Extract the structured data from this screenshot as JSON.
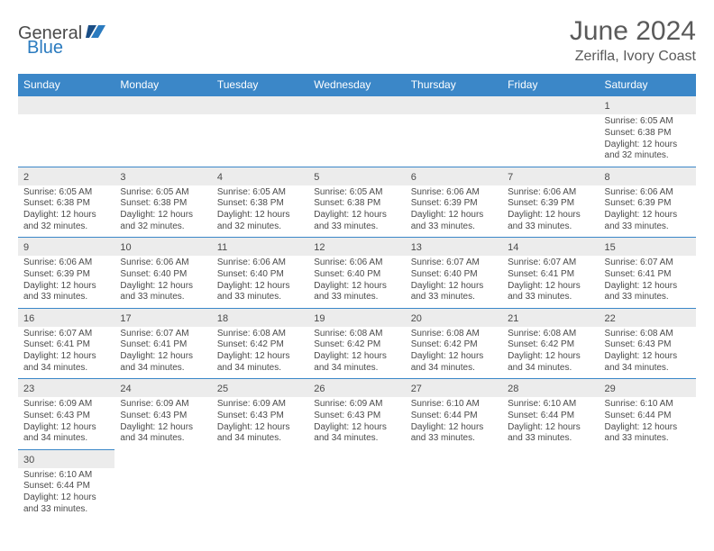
{
  "brand": {
    "general": "General",
    "blue": "Blue"
  },
  "title": "June 2024",
  "location": "Zerifla, Ivory Coast",
  "colors": {
    "header_bg": "#3b87c8",
    "header_text": "#ffffff",
    "daynum_bg": "#ececec",
    "border": "#3b87c8",
    "text": "#4a4a4a",
    "logo_blue": "#2b7bbf"
  },
  "day_headers": [
    "Sunday",
    "Monday",
    "Tuesday",
    "Wednesday",
    "Thursday",
    "Friday",
    "Saturday"
  ],
  "weeks": [
    [
      null,
      null,
      null,
      null,
      null,
      null,
      {
        "n": "1",
        "sr": "Sunrise: 6:05 AM",
        "ss": "Sunset: 6:38 PM",
        "dl": "Daylight: 12 hours and 32 minutes."
      }
    ],
    [
      {
        "n": "2",
        "sr": "Sunrise: 6:05 AM",
        "ss": "Sunset: 6:38 PM",
        "dl": "Daylight: 12 hours and 32 minutes."
      },
      {
        "n": "3",
        "sr": "Sunrise: 6:05 AM",
        "ss": "Sunset: 6:38 PM",
        "dl": "Daylight: 12 hours and 32 minutes."
      },
      {
        "n": "4",
        "sr": "Sunrise: 6:05 AM",
        "ss": "Sunset: 6:38 PM",
        "dl": "Daylight: 12 hours and 32 minutes."
      },
      {
        "n": "5",
        "sr": "Sunrise: 6:05 AM",
        "ss": "Sunset: 6:38 PM",
        "dl": "Daylight: 12 hours and 33 minutes."
      },
      {
        "n": "6",
        "sr": "Sunrise: 6:06 AM",
        "ss": "Sunset: 6:39 PM",
        "dl": "Daylight: 12 hours and 33 minutes."
      },
      {
        "n": "7",
        "sr": "Sunrise: 6:06 AM",
        "ss": "Sunset: 6:39 PM",
        "dl": "Daylight: 12 hours and 33 minutes."
      },
      {
        "n": "8",
        "sr": "Sunrise: 6:06 AM",
        "ss": "Sunset: 6:39 PM",
        "dl": "Daylight: 12 hours and 33 minutes."
      }
    ],
    [
      {
        "n": "9",
        "sr": "Sunrise: 6:06 AM",
        "ss": "Sunset: 6:39 PM",
        "dl": "Daylight: 12 hours and 33 minutes."
      },
      {
        "n": "10",
        "sr": "Sunrise: 6:06 AM",
        "ss": "Sunset: 6:40 PM",
        "dl": "Daylight: 12 hours and 33 minutes."
      },
      {
        "n": "11",
        "sr": "Sunrise: 6:06 AM",
        "ss": "Sunset: 6:40 PM",
        "dl": "Daylight: 12 hours and 33 minutes."
      },
      {
        "n": "12",
        "sr": "Sunrise: 6:06 AM",
        "ss": "Sunset: 6:40 PM",
        "dl": "Daylight: 12 hours and 33 minutes."
      },
      {
        "n": "13",
        "sr": "Sunrise: 6:07 AM",
        "ss": "Sunset: 6:40 PM",
        "dl": "Daylight: 12 hours and 33 minutes."
      },
      {
        "n": "14",
        "sr": "Sunrise: 6:07 AM",
        "ss": "Sunset: 6:41 PM",
        "dl": "Daylight: 12 hours and 33 minutes."
      },
      {
        "n": "15",
        "sr": "Sunrise: 6:07 AM",
        "ss": "Sunset: 6:41 PM",
        "dl": "Daylight: 12 hours and 33 minutes."
      }
    ],
    [
      {
        "n": "16",
        "sr": "Sunrise: 6:07 AM",
        "ss": "Sunset: 6:41 PM",
        "dl": "Daylight: 12 hours and 34 minutes."
      },
      {
        "n": "17",
        "sr": "Sunrise: 6:07 AM",
        "ss": "Sunset: 6:41 PM",
        "dl": "Daylight: 12 hours and 34 minutes."
      },
      {
        "n": "18",
        "sr": "Sunrise: 6:08 AM",
        "ss": "Sunset: 6:42 PM",
        "dl": "Daylight: 12 hours and 34 minutes."
      },
      {
        "n": "19",
        "sr": "Sunrise: 6:08 AM",
        "ss": "Sunset: 6:42 PM",
        "dl": "Daylight: 12 hours and 34 minutes."
      },
      {
        "n": "20",
        "sr": "Sunrise: 6:08 AM",
        "ss": "Sunset: 6:42 PM",
        "dl": "Daylight: 12 hours and 34 minutes."
      },
      {
        "n": "21",
        "sr": "Sunrise: 6:08 AM",
        "ss": "Sunset: 6:42 PM",
        "dl": "Daylight: 12 hours and 34 minutes."
      },
      {
        "n": "22",
        "sr": "Sunrise: 6:08 AM",
        "ss": "Sunset: 6:43 PM",
        "dl": "Daylight: 12 hours and 34 minutes."
      }
    ],
    [
      {
        "n": "23",
        "sr": "Sunrise: 6:09 AM",
        "ss": "Sunset: 6:43 PM",
        "dl": "Daylight: 12 hours and 34 minutes."
      },
      {
        "n": "24",
        "sr": "Sunrise: 6:09 AM",
        "ss": "Sunset: 6:43 PM",
        "dl": "Daylight: 12 hours and 34 minutes."
      },
      {
        "n": "25",
        "sr": "Sunrise: 6:09 AM",
        "ss": "Sunset: 6:43 PM",
        "dl": "Daylight: 12 hours and 34 minutes."
      },
      {
        "n": "26",
        "sr": "Sunrise: 6:09 AM",
        "ss": "Sunset: 6:43 PM",
        "dl": "Daylight: 12 hours and 34 minutes."
      },
      {
        "n": "27",
        "sr": "Sunrise: 6:10 AM",
        "ss": "Sunset: 6:44 PM",
        "dl": "Daylight: 12 hours and 33 minutes."
      },
      {
        "n": "28",
        "sr": "Sunrise: 6:10 AM",
        "ss": "Sunset: 6:44 PM",
        "dl": "Daylight: 12 hours and 33 minutes."
      },
      {
        "n": "29",
        "sr": "Sunrise: 6:10 AM",
        "ss": "Sunset: 6:44 PM",
        "dl": "Daylight: 12 hours and 33 minutes."
      }
    ],
    [
      {
        "n": "30",
        "sr": "Sunrise: 6:10 AM",
        "ss": "Sunset: 6:44 PM",
        "dl": "Daylight: 12 hours and 33 minutes."
      },
      null,
      null,
      null,
      null,
      null,
      null
    ]
  ]
}
